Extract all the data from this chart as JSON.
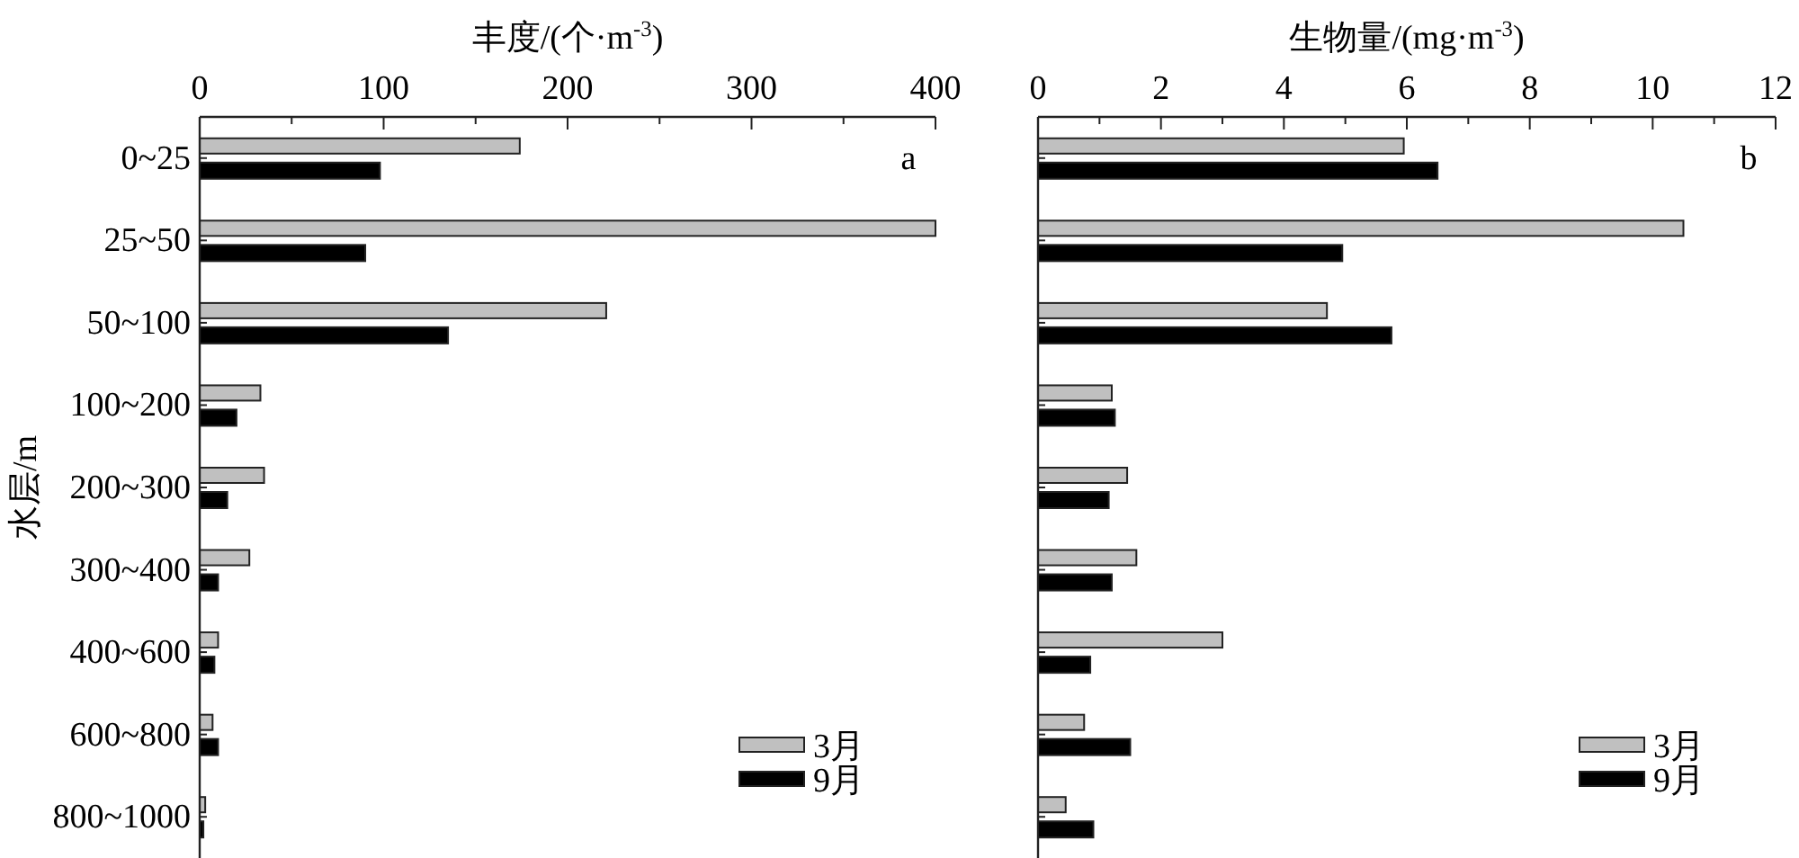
{
  "chart_data": [
    {
      "type": "bar",
      "orientation": "horizontal",
      "xlabel": "丰度/(个·m$^{-3}$)",
      "ylabel": "水层/m",
      "categories": [
        "0~25",
        "25~50",
        "50~100",
        "100~200",
        "200~300",
        "300~400",
        "400~600",
        "600~800",
        "800~1000"
      ],
      "series": [
        {
          "name": "3月",
          "color": "#c0c0c0",
          "values": [
            174,
            400,
            221,
            33,
            35,
            27,
            10,
            7,
            3
          ]
        },
        {
          "name": "9月",
          "color": "#000000",
          "values": [
            98,
            90,
            135,
            20,
            15,
            10,
            8,
            10,
            2
          ]
        }
      ],
      "xlim": [
        0,
        400
      ],
      "xticks": [
        0,
        {
          "value": 50,
          "label": null
        },
        100,
        {
          "value": 150,
          "label": null
        },
        200,
        {
          "value": 250,
          "label": null
        },
        300,
        {
          "value": 350,
          "label": null
        },
        400
      ],
      "legend": "bottom right",
      "annotations": [
        "a"
      ]
    },
    {
      "type": "bar",
      "orientation": "horizontal",
      "xlabel": "生物量/(mg·m$^{-3}$)",
      "categories": [
        null,
        null,
        null,
        null,
        null,
        null,
        null,
        null,
        null
      ],
      "series": [
        {
          "name": "3月",
          "color": "#c0c0c0",
          "values": [
            5.95,
            10.5,
            4.7,
            1.2,
            1.45,
            1.6,
            3.0,
            0.75,
            0.45
          ]
        },
        {
          "name": "9月",
          "color": "#000000",
          "values": [
            6.5,
            4.95,
            5.75,
            1.25,
            1.15,
            1.2,
            0.85,
            1.5,
            0.9
          ]
        }
      ],
      "xlim": [
        0,
        12
      ],
      "xticks": [
        0,
        {
          "value": 1,
          "label": null
        },
        2,
        {
          "value": 3,
          "label": null
        },
        4,
        {
          "value": 5,
          "label": null
        },
        6,
        {
          "value": 7,
          "label": null
        },
        8,
        {
          "value": 9,
          "label": null
        },
        10,
        {
          "value": 11,
          "label": null
        },
        12
      ],
      "legend": "bottom right",
      "annotations": [
        "b"
      ]
    }
  ]
}
